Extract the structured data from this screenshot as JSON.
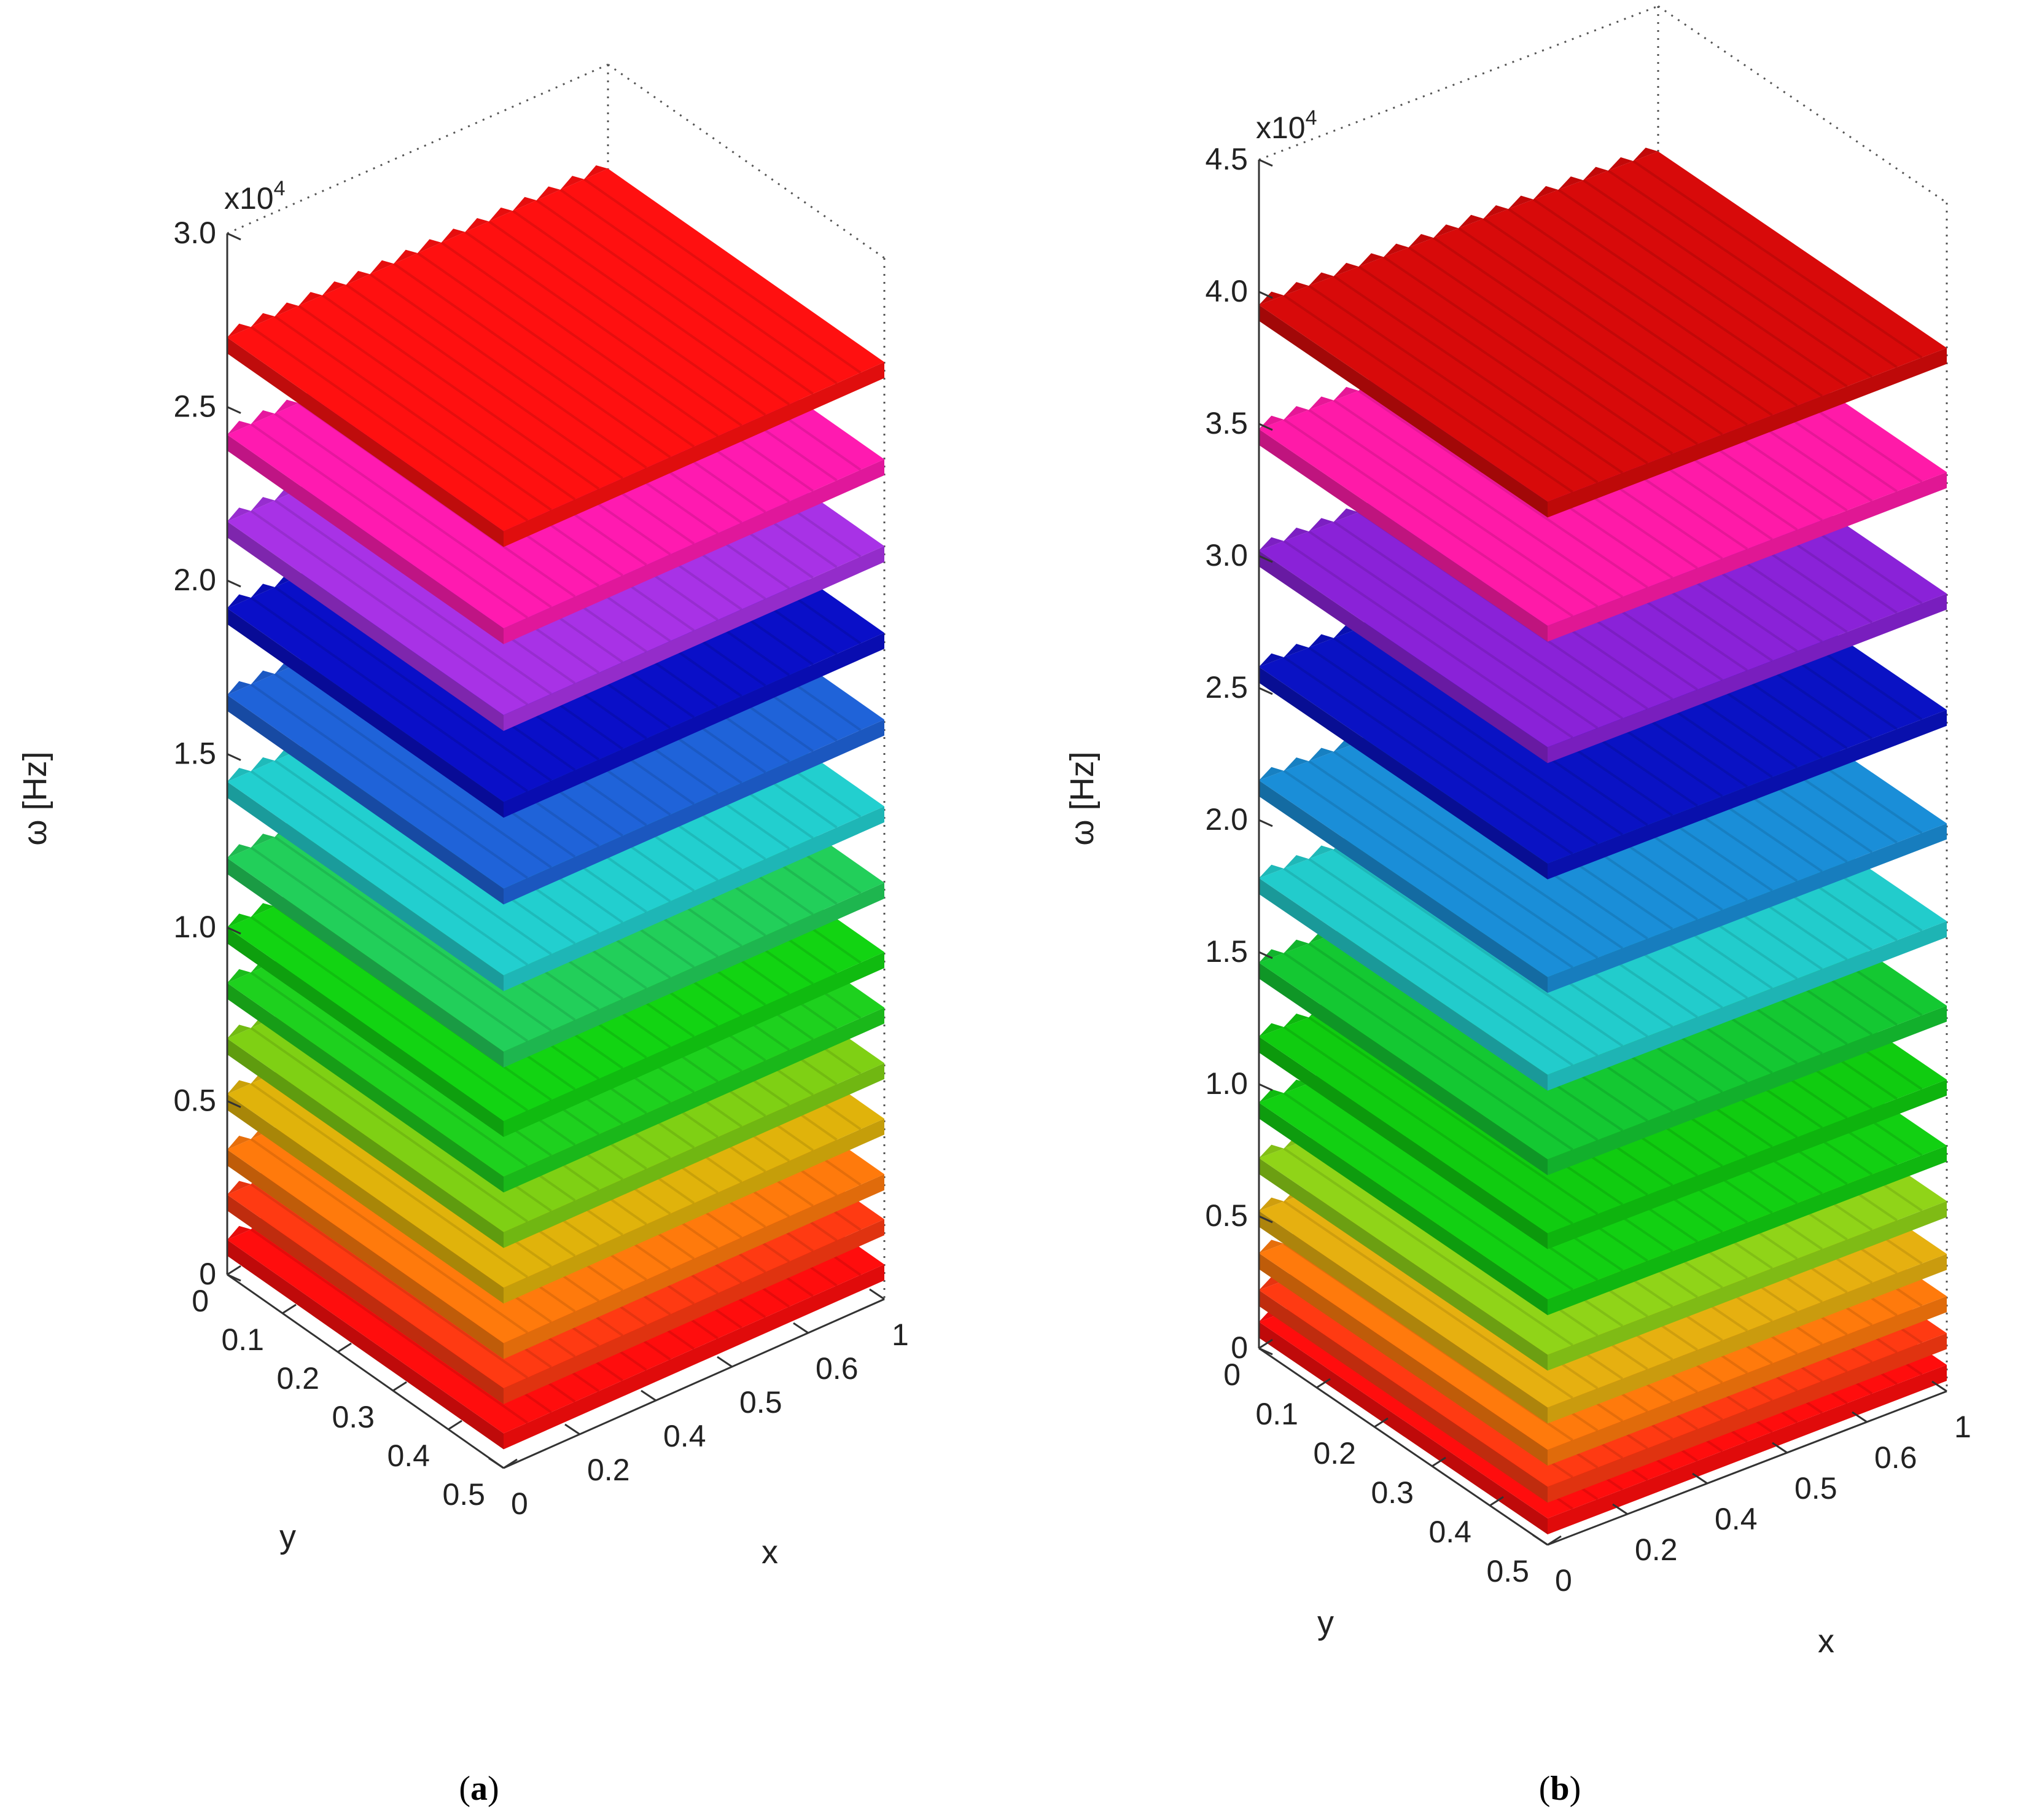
{
  "chart_data": [
    {
      "type": "surface3d",
      "panel_label": "a",
      "zlabel": "ω [Hz]",
      "xlabel": "x",
      "ylabel": "y",
      "z_multiplier": "x10",
      "z_multiplier_exp": "4",
      "zlim": [
        0,
        30000
      ],
      "z_ticks": [
        "0",
        "0.5",
        "1.0",
        "1.5",
        "2.0",
        "2.5",
        "3.0"
      ],
      "x_ticks": [
        "0",
        "0.2",
        "0.4",
        "0.5",
        "0.6",
        "1"
      ],
      "y_ticks": [
        "0",
        "0.1",
        "0.2",
        "0.3",
        "0.4",
        "0.5"
      ],
      "grid": true,
      "series": [
        {
          "level": 1000,
          "color": "#ff0d0d"
        },
        {
          "level": 2300,
          "color": "#ff3a12"
        },
        {
          "level": 3600,
          "color": "#ff7a0c"
        },
        {
          "level": 5200,
          "color": "#e0b30b"
        },
        {
          "level": 6800,
          "color": "#7fd014"
        },
        {
          "level": 8400,
          "color": "#1ed11e"
        },
        {
          "level": 10000,
          "color": "#12d412"
        },
        {
          "level": 12000,
          "color": "#22cf5a"
        },
        {
          "level": 14200,
          "color": "#22cfcf"
        },
        {
          "level": 16700,
          "color": "#1f63d9"
        },
        {
          "level": 19200,
          "color": "#0a0fc8"
        },
        {
          "level": 21700,
          "color": "#a832e6"
        },
        {
          "level": 24200,
          "color": "#ff1ab0"
        },
        {
          "level": 27000,
          "color": "#ff1010"
        }
      ]
    },
    {
      "type": "surface3d",
      "panel_label": "b",
      "zlabel": "ω [Hz]",
      "xlabel": "x",
      "ylabel": "y",
      "z_multiplier": "x10",
      "z_multiplier_exp": "4",
      "zlim": [
        0,
        45000
      ],
      "z_ticks": [
        "0",
        "0.5",
        "1.0",
        "1.5",
        "2.0",
        "2.5",
        "3.0",
        "3.5",
        "4.0",
        "4.5"
      ],
      "x_ticks": [
        "0",
        "0.2",
        "0.4",
        "0.5",
        "0.6",
        "1"
      ],
      "y_ticks": [
        "0",
        "0.1",
        "0.2",
        "0.3",
        "0.4",
        "0.5"
      ],
      "grid": true,
      "series": [
        {
          "level": 1000,
          "color": "#ff0d0d"
        },
        {
          "level": 2200,
          "color": "#ff3a12"
        },
        {
          "level": 3600,
          "color": "#ff7a0c"
        },
        {
          "level": 5200,
          "color": "#e6b010"
        },
        {
          "level": 7200,
          "color": "#90d418"
        },
        {
          "level": 9300,
          "color": "#12d012"
        },
        {
          "level": 11800,
          "color": "#10cc10"
        },
        {
          "level": 14600,
          "color": "#14c832"
        },
        {
          "level": 17800,
          "color": "#22cccc"
        },
        {
          "level": 21500,
          "color": "#1a8ed8"
        },
        {
          "level": 25800,
          "color": "#0a12c4"
        },
        {
          "level": 30200,
          "color": "#8a22d8"
        },
        {
          "level": 34800,
          "color": "#ff1aa8"
        },
        {
          "level": 39500,
          "color": "#d80a0a"
        }
      ]
    }
  ]
}
